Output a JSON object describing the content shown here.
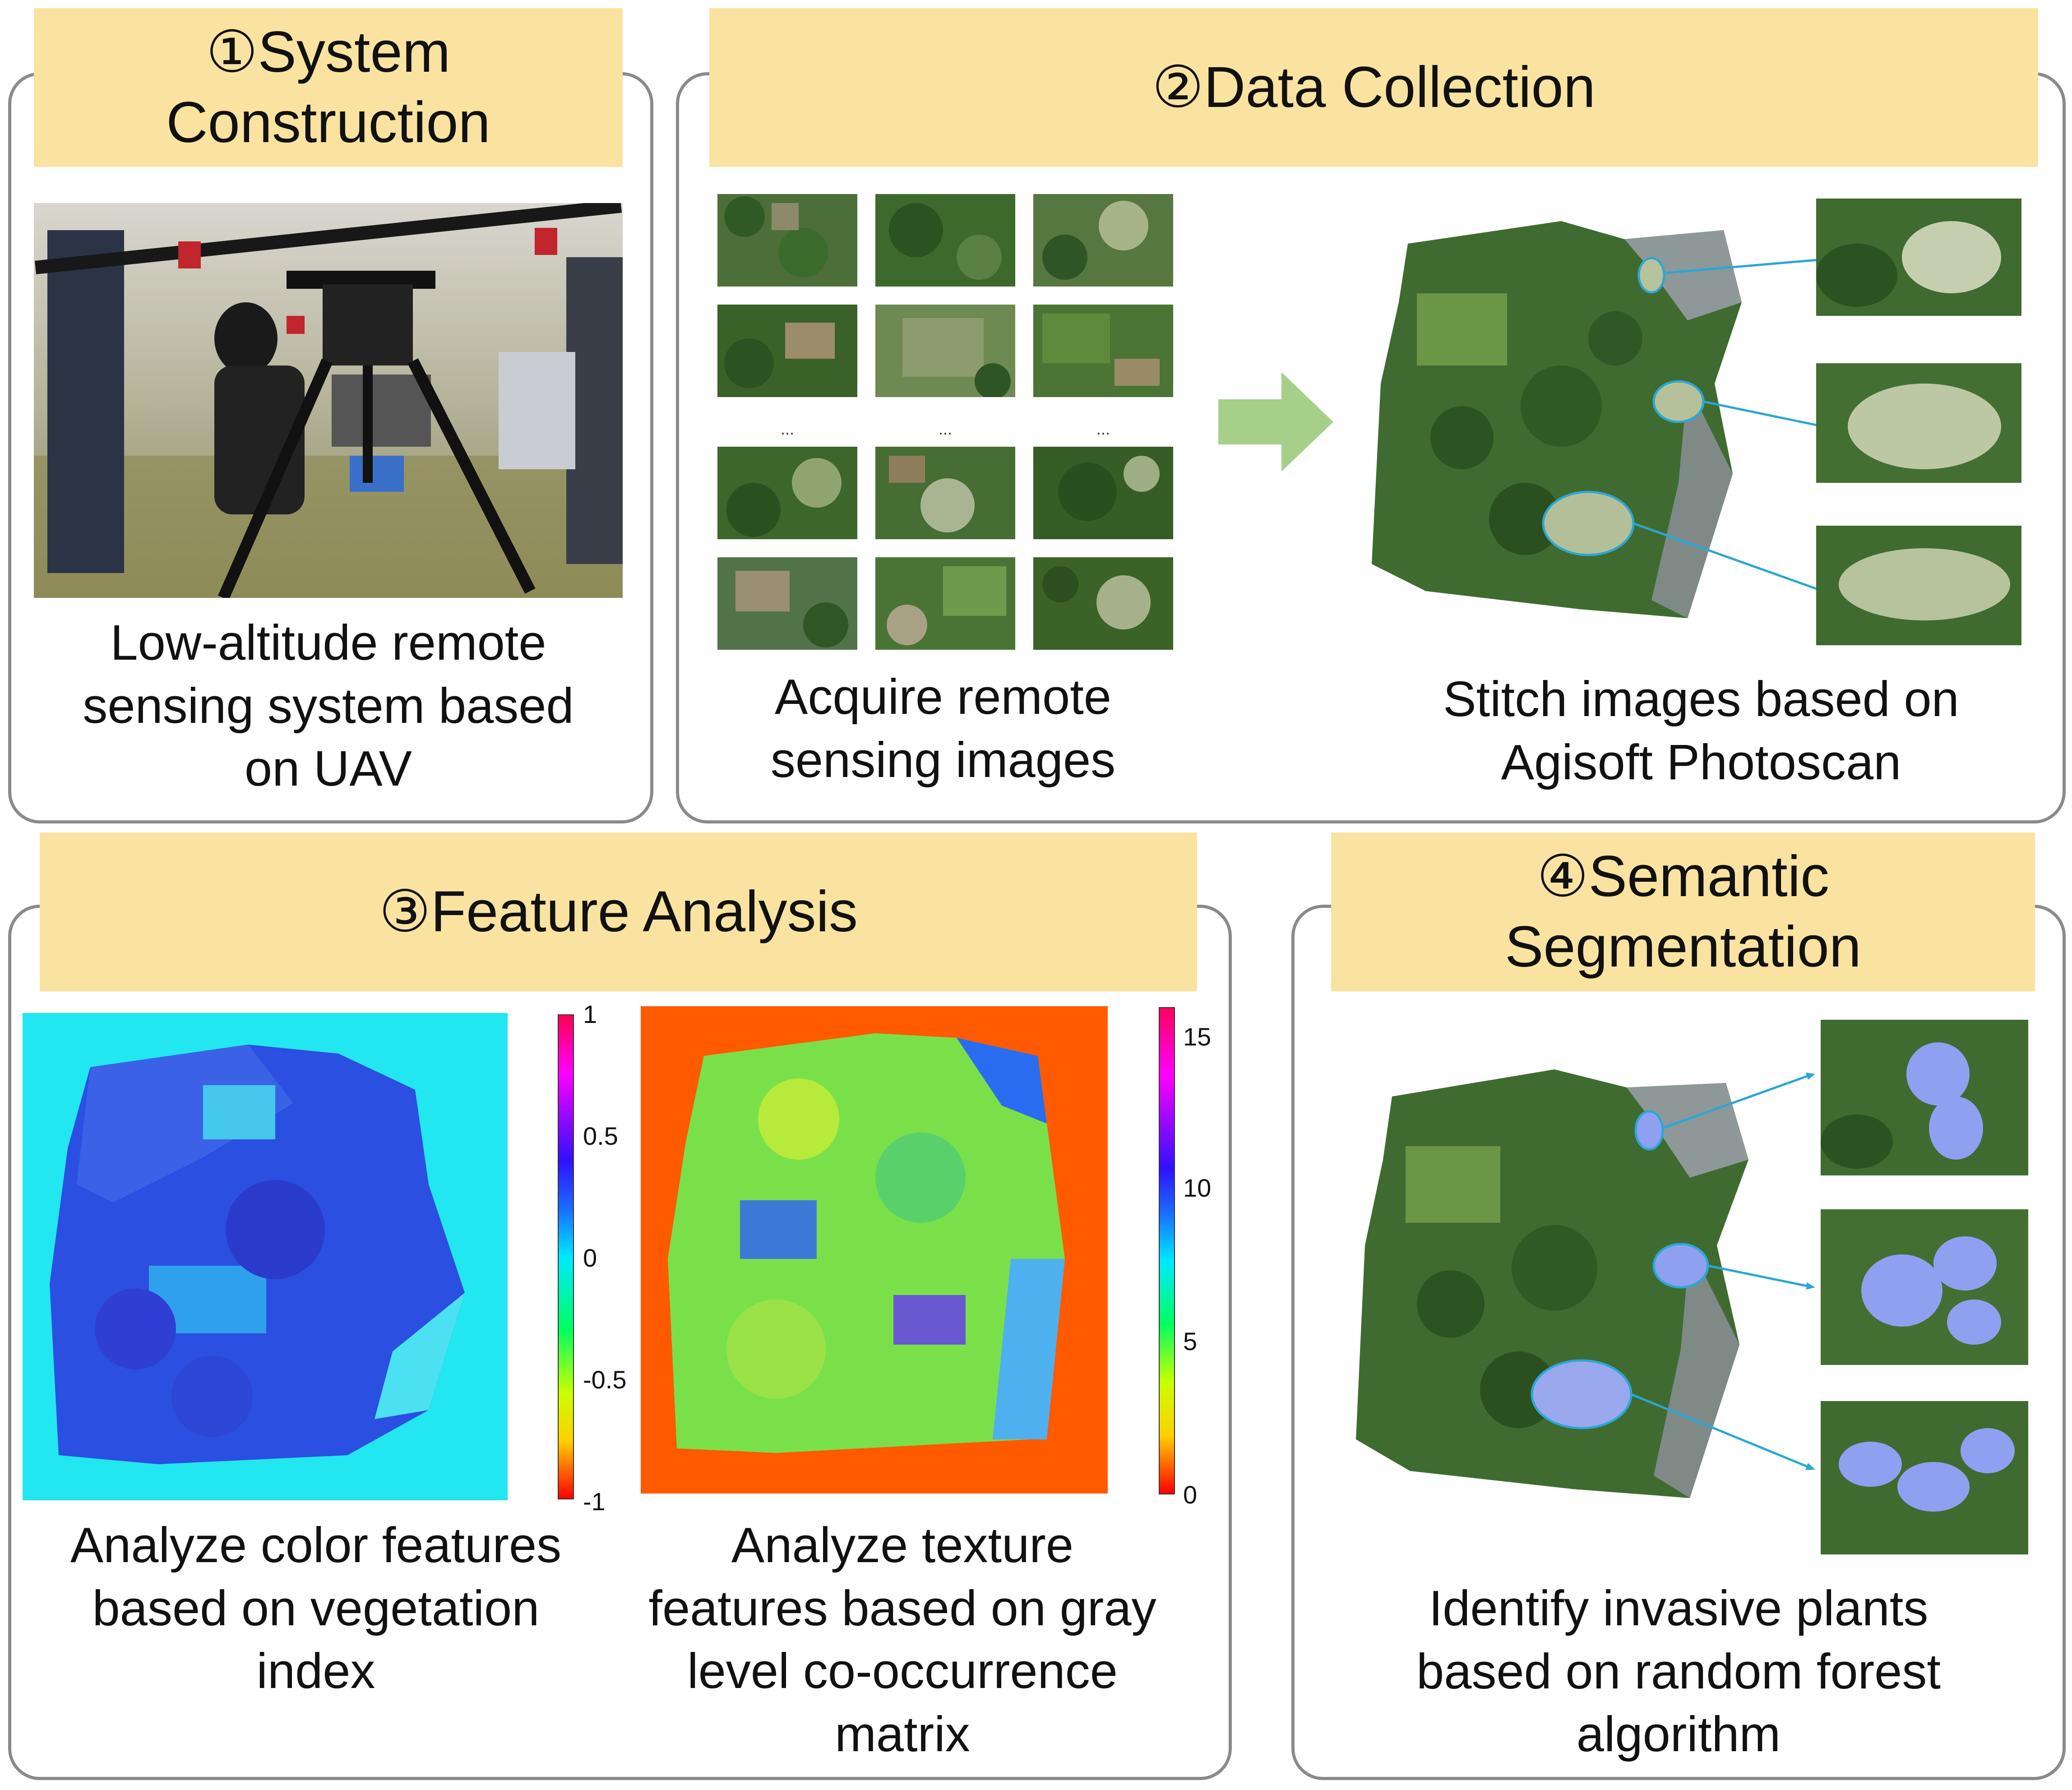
{
  "panels": {
    "p1": {
      "title": "①System Construction",
      "caption": "Low-altitude remote sensing system based on UAV"
    },
    "p2": {
      "title": "②Data Collection",
      "caption_left": "Acquire remote sensing images",
      "caption_right": "Stitch images based on Agisoft Photoscan"
    },
    "p3": {
      "title": "③Feature Analysis",
      "caption_left": "Analyze color features based on vegetation index",
      "caption_right": "Analyze texture features based on gray level co-occurrence matrix",
      "colorbar_left_ticks": [
        "1",
        "0.5",
        "0",
        "-0.5",
        "-1"
      ],
      "colorbar_right_ticks": [
        "15",
        "10",
        "5",
        "0"
      ]
    },
    "p4": {
      "title": "④Semantic Segmentation",
      "caption": "Identify invasive plants based on random forest algorithm"
    }
  },
  "ellipsis": "...",
  "icons": {
    "arrow": "right-arrow-icon"
  },
  "colors": {
    "banner": "#fae3a0",
    "border": "#8a8a8a",
    "arrow": "#a6cf8a",
    "callout": "#2aa7d6",
    "highlight": "#8fa0f0"
  }
}
